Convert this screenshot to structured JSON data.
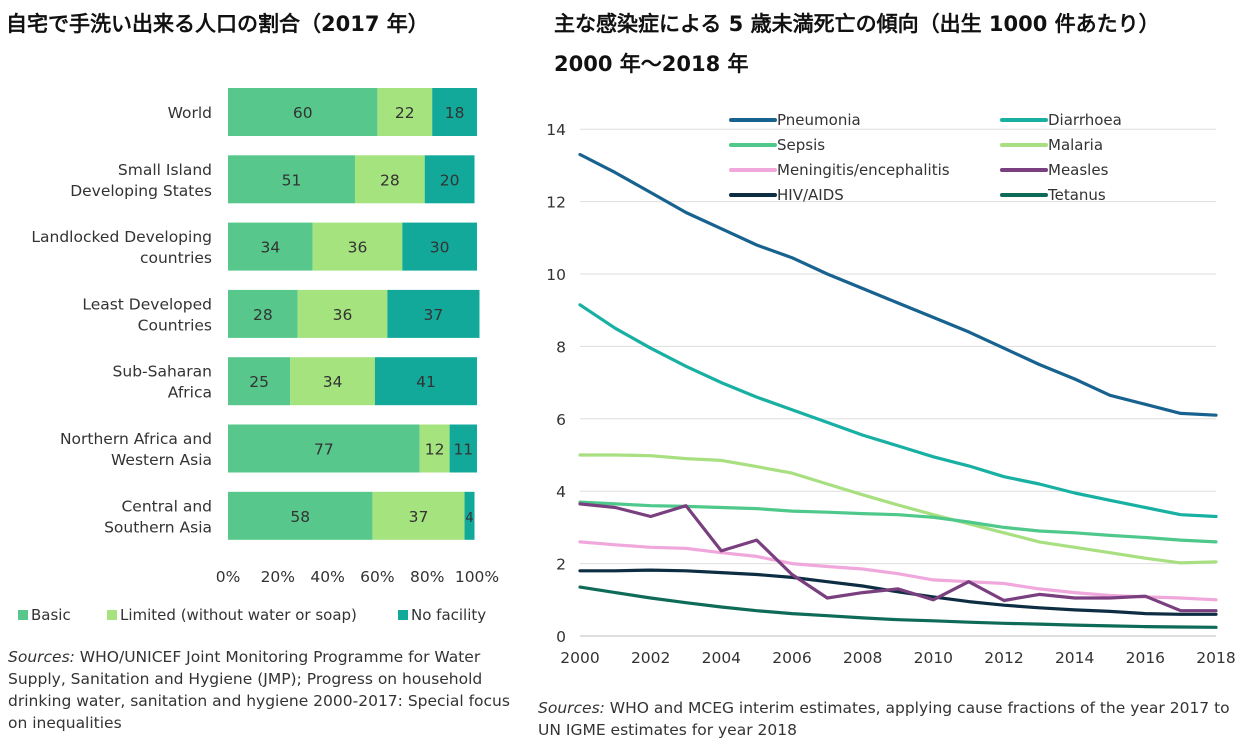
{
  "left": {
    "title": "自宅で手洗い出来る人口の割合（2017 年）",
    "sources_label": "Sources:",
    "sources_text": " WHO/UNICEF Joint Monitoring Programme for Water Supply, Sanitation and Hygiene (JMP); Progress on household drinking water, sanitation and hygiene 2000-2017: Special focus on inequalities"
  },
  "right": {
    "title_line1": "主な感染症による 5 歳未満死亡の傾向（出生 1000 件あたり）",
    "title_line2": "2000 年～2018 年",
    "sources_label": "Sources:",
    "sources_text": " WHO and MCEG interim estimates, applying cause fractions of the year 2017 to UN IGME estimates for year 2018"
  },
  "chart_data": [
    {
      "type": "bar",
      "orientation": "horizontal",
      "stacked": true,
      "categories": [
        [
          "World"
        ],
        [
          "Small Island",
          "Developing States"
        ],
        [
          "Landlocked Developing",
          "countries"
        ],
        [
          "Least Developed",
          "Countries"
        ],
        [
          "Sub-Saharan",
          "Africa"
        ],
        [
          "Northern Africa and",
          "Western Asia"
        ],
        [
          "Central and",
          "Southern Asia"
        ]
      ],
      "series": [
        {
          "name": "Basic",
          "color": "#57c78b",
          "values": [
            60,
            51,
            34,
            28,
            25,
            77,
            58
          ]
        },
        {
          "name": "Limited (without water or soap)",
          "color": "#a4e37e",
          "values": [
            22,
            28,
            36,
            36,
            34,
            12,
            37
          ]
        },
        {
          "name": "No facility",
          "color": "#13a99a",
          "values": [
            18,
            20,
            30,
            37,
            41,
            11,
            4
          ]
        }
      ],
      "x_ticks": [
        "0%",
        "20%",
        "40%",
        "60%",
        "80%",
        "100%"
      ],
      "xlim": [
        0,
        100
      ],
      "legend": "bottom",
      "grid": false
    },
    {
      "type": "line",
      "x": [
        2000,
        2001,
        2002,
        2003,
        2004,
        2005,
        2006,
        2007,
        2008,
        2009,
        2010,
        2011,
        2012,
        2013,
        2014,
        2015,
        2016,
        2017,
        2018
      ],
      "x_ticks": [
        2000,
        2002,
        2004,
        2006,
        2008,
        2010,
        2012,
        2014,
        2016,
        2018
      ],
      "y_ticks": [
        0,
        2,
        4,
        6,
        8,
        10,
        12,
        14
      ],
      "ylim": [
        0,
        14.6
      ],
      "grid": true,
      "legend": "top",
      "series": [
        {
          "name": "Pneumonia",
          "color": "#17628f",
          "values": [
            13.3,
            12.8,
            12.25,
            11.7,
            11.25,
            10.8,
            10.45,
            10.0,
            9.6,
            9.2,
            8.8,
            8.4,
            7.95,
            7.5,
            7.1,
            6.65,
            6.4,
            6.15,
            6.1
          ]
        },
        {
          "name": "Diarrhoea",
          "color": "#17b0a3",
          "values": [
            9.15,
            8.5,
            7.95,
            7.45,
            7.0,
            6.6,
            6.25,
            5.9,
            5.55,
            5.25,
            4.95,
            4.7,
            4.4,
            4.2,
            3.95,
            3.75,
            3.55,
            3.35,
            3.3
          ]
        },
        {
          "name": "Sepsis",
          "color": "#4fc88b",
          "values": [
            3.7,
            3.65,
            3.6,
            3.58,
            3.55,
            3.52,
            3.45,
            3.42,
            3.38,
            3.35,
            3.28,
            3.15,
            3.0,
            2.9,
            2.85,
            2.78,
            2.72,
            2.65,
            2.6
          ]
        },
        {
          "name": "Malaria",
          "color": "#a8df80",
          "values": [
            5.0,
            5.0,
            4.98,
            4.9,
            4.85,
            4.68,
            4.5,
            4.2,
            3.9,
            3.62,
            3.35,
            3.1,
            2.85,
            2.6,
            2.45,
            2.3,
            2.15,
            2.02,
            2.05
          ]
        },
        {
          "name": "Meningitis/encephalitis",
          "color": "#f0a8dc",
          "values": [
            2.6,
            2.52,
            2.45,
            2.42,
            2.3,
            2.2,
            2.0,
            1.92,
            1.85,
            1.72,
            1.55,
            1.5,
            1.45,
            1.3,
            1.2,
            1.12,
            1.08,
            1.05,
            1.0
          ]
        },
        {
          "name": "Measles",
          "color": "#7a3f7e",
          "values": [
            3.65,
            3.55,
            3.3,
            3.6,
            2.35,
            2.65,
            1.7,
            1.05,
            1.2,
            1.3,
            1.0,
            1.5,
            0.98,
            1.15,
            1.05,
            1.05,
            1.1,
            0.7,
            0.7
          ]
        },
        {
          "name": "HIV/AIDS",
          "color": "#0d2d43",
          "values": [
            1.8,
            1.8,
            1.82,
            1.8,
            1.75,
            1.7,
            1.62,
            1.5,
            1.38,
            1.22,
            1.08,
            0.95,
            0.85,
            0.78,
            0.72,
            0.68,
            0.62,
            0.6,
            0.6
          ]
        },
        {
          "name": "Tetanus",
          "color": "#0d6b58",
          "values": [
            1.35,
            1.2,
            1.05,
            0.92,
            0.8,
            0.7,
            0.62,
            0.56,
            0.5,
            0.45,
            0.42,
            0.38,
            0.35,
            0.33,
            0.3,
            0.28,
            0.26,
            0.25,
            0.24
          ]
        }
      ]
    }
  ]
}
